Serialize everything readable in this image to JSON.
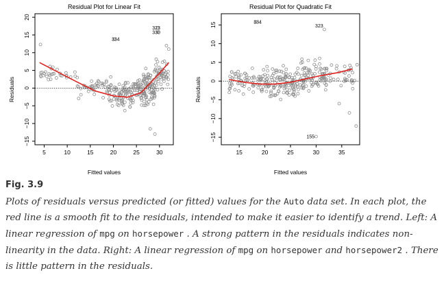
{
  "chart_data": [
    {
      "type": "scatter",
      "title": "Residual Plot for Linear Fit",
      "xlabel": "Fitted values",
      "ylabel": "Residuals",
      "xlim": [
        3,
        33
      ],
      "ylim": [
        -16,
        21
      ],
      "xticks": [
        "5",
        "10",
        "15",
        "20",
        "25",
        "30"
      ],
      "yticks": [
        "-15",
        "-10",
        "-5",
        "0",
        "5",
        "10",
        "15",
        "20"
      ],
      "reference_line": 0,
      "smooth_color": "#e0211d",
      "smooth_fit": [
        [
          4,
          7.2
        ],
        [
          8,
          4.5
        ],
        [
          12,
          1.8
        ],
        [
          16,
          -0.8
        ],
        [
          20,
          -2.2
        ],
        [
          23,
          -2.6
        ],
        [
          26,
          -1.3
        ],
        [
          28,
          1.5
        ],
        [
          30,
          4.2
        ],
        [
          32,
          7.2
        ]
      ],
      "annotations": [
        {
          "label": "323",
          "x": 29.3,
          "y": 17.0
        },
        {
          "label": "330",
          "x": 29.3,
          "y": 15.8
        },
        {
          "label": "334",
          "x": 20.5,
          "y": 13.8
        }
      ],
      "outliers": [
        {
          "x": 29.6,
          "y": 17.0
        },
        {
          "x": 29.6,
          "y": 15.8
        },
        {
          "x": 20.2,
          "y": 13.8
        },
        {
          "x": 4.2,
          "y": 12.3
        },
        {
          "x": 31.5,
          "y": 12.0
        },
        {
          "x": 32.0,
          "y": 11.0
        },
        {
          "x": 29.0,
          "y": -13.0
        },
        {
          "x": 28.0,
          "y": -11.5
        }
      ],
      "point_cloud": [
        {
          "x_range": [
            4,
            12
          ],
          "y_center": 4.0,
          "y_spread": 2.5,
          "n": 30
        },
        {
          "x_range": [
            12,
            19
          ],
          "y_center": 0.3,
          "y_spread": 3.0,
          "n": 40
        },
        {
          "x_range": [
            19,
            25
          ],
          "y_center": -2.0,
          "y_spread": 4.5,
          "n": 90
        },
        {
          "x_range": [
            25,
            29
          ],
          "y_center": 0.0,
          "y_spread": 5.5,
          "n": 110
        },
        {
          "x_range": [
            29,
            32
          ],
          "y_center": 4.0,
          "y_spread": 5.0,
          "n": 50
        }
      ]
    },
    {
      "type": "scatter",
      "title": "Residual Plot for Quadratic Fit",
      "xlabel": "Fitted values",
      "ylabel": "Residuals",
      "xlim": [
        11.5,
        38.5
      ],
      "ylim": [
        -17,
        18
      ],
      "xticks": [
        "15",
        "20",
        "25",
        "30",
        "35"
      ],
      "yticks": [
        "-15",
        "-10",
        "-5",
        "0",
        "5",
        "10",
        "15"
      ],
      "reference_line": 0,
      "smooth_color": "#e0211d",
      "smooth_fit": [
        [
          13,
          0.4
        ],
        [
          16,
          -0.3
        ],
        [
          19,
          -0.8
        ],
        [
          22,
          -0.8
        ],
        [
          25,
          -0.3
        ],
        [
          28,
          0.6
        ],
        [
          31,
          1.5
        ],
        [
          34,
          2.2
        ],
        [
          37,
          3.2
        ]
      ],
      "annotations": [
        {
          "label": "334",
          "x": 18.6,
          "y": 15.8
        },
        {
          "label": "323",
          "x": 30.6,
          "y": 14.8
        },
        {
          "label": "155",
          "x": 28.9,
          "y": -14.8
        }
      ],
      "outliers": [
        {
          "x": 18.2,
          "y": 15.8
        },
        {
          "x": 31.6,
          "y": 13.8
        },
        {
          "x": 30.0,
          "y": -14.8
        },
        {
          "x": 37.8,
          "y": -12.0
        },
        {
          "x": 36.5,
          "y": -8.5
        },
        {
          "x": 34.5,
          "y": -6.0
        }
      ],
      "point_cloud": [
        {
          "x_range": [
            13,
            20
          ],
          "y_center": 0.0,
          "y_spread": 3.5,
          "n": 70
        },
        {
          "x_range": [
            20,
            26
          ],
          "y_center": -0.5,
          "y_spread": 5.0,
          "n": 110
        },
        {
          "x_range": [
            26,
            32
          ],
          "y_center": 1.0,
          "y_spread": 5.0,
          "n": 100
        },
        {
          "x_range": [
            32,
            38
          ],
          "y_center": 1.5,
          "y_spread": 5.0,
          "n": 35
        }
      ]
    }
  ],
  "figure": {
    "label": "Fig. 3.9",
    "caption_parts": [
      {
        "t": "Plots of residuals versus predicted (or fitted) values for the ",
        "code": false
      },
      {
        "t": "Auto",
        "code": true
      },
      {
        "t": " data set. In each plot, the red line is a smooth fit to the residuals, intended to make it easier to identify a trend. Left: A linear regression of ",
        "code": false
      },
      {
        "t": "mpg",
        "code": true
      },
      {
        "t": " on ",
        "code": false
      },
      {
        "t": "horsepower",
        "code": true
      },
      {
        "t": " . A strong pattern in the residuals indicates non-linearity in the data. Right: A linear regression of ",
        "code": false
      },
      {
        "t": "mpg",
        "code": true
      },
      {
        "t": " on ",
        "code": false
      },
      {
        "t": "horsepower",
        "code": true
      },
      {
        "t": " and ",
        "code": false
      },
      {
        "t": "horsepower2",
        "code": true
      },
      {
        "t": " . There is little pattern in the residuals.",
        "code": false
      }
    ]
  }
}
